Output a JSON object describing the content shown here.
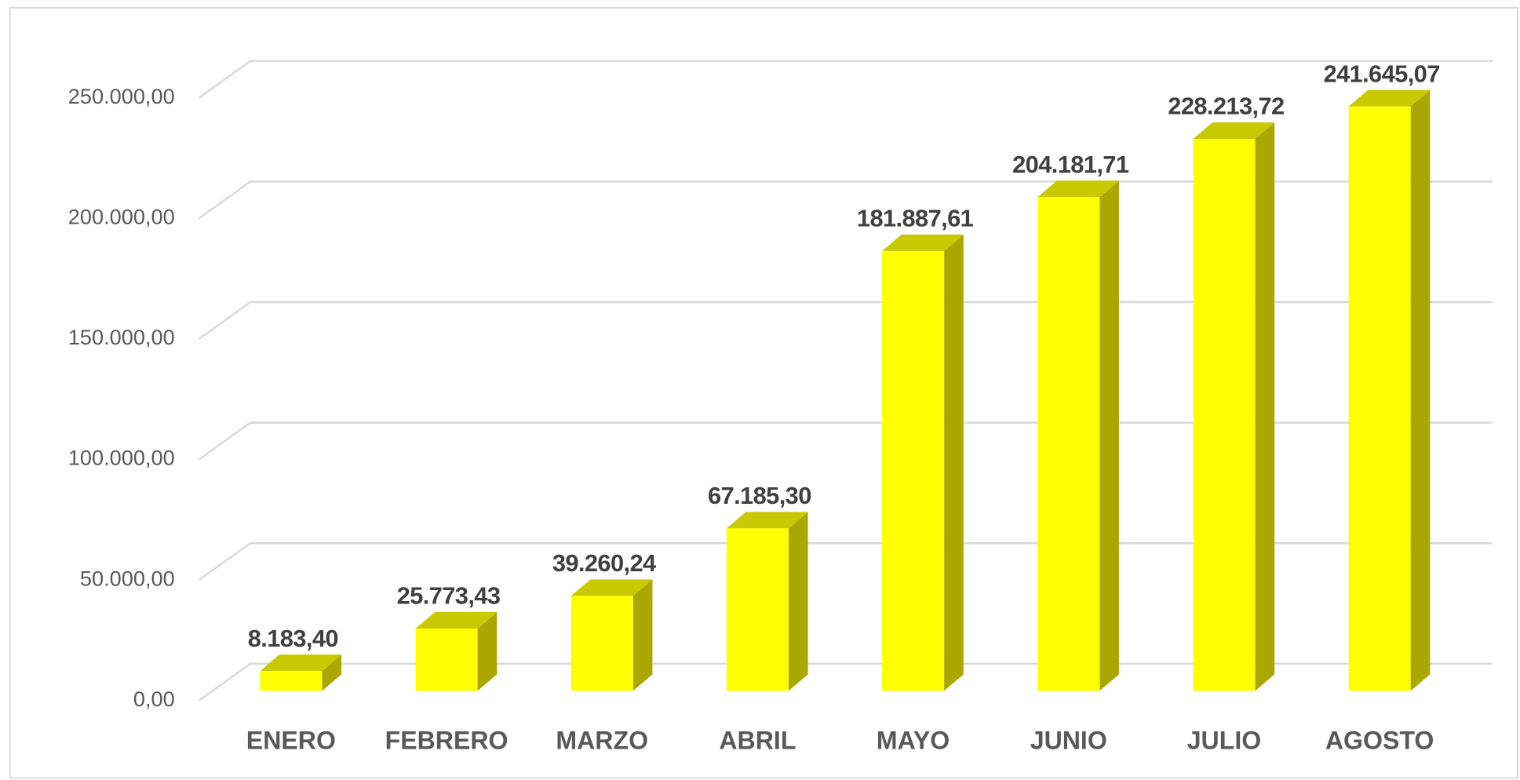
{
  "chart_data": {
    "type": "bar3d",
    "categories": [
      "ENERO",
      "FEBRERO",
      "MARZO",
      "ABRIL",
      "MAYO",
      "JUNIO",
      "JULIO",
      "AGOSTO"
    ],
    "values": [
      8183.4,
      25773.43,
      39260.24,
      67185.3,
      181887.61,
      204181.71,
      228213.72,
      241645.07
    ],
    "value_labels": [
      "8.183,40",
      "25.773,43",
      "39.260,24",
      "67.185,30",
      "181.887,61",
      "204.181,71",
      "228.213,72",
      "241.645,07"
    ],
    "color": "#ffff00",
    "ylim": [
      0,
      250000
    ],
    "yticks": [
      {
        "value": 0,
        "label": "0,00"
      },
      {
        "value": 50000,
        "label": "50.000,00"
      },
      {
        "value": 100000,
        "label": "100.000,00"
      },
      {
        "value": 150000,
        "label": "150.000,00"
      },
      {
        "value": 200000,
        "label": "200.000,00"
      },
      {
        "value": 250000,
        "label": "250.000,00"
      }
    ],
    "grid": true
  }
}
